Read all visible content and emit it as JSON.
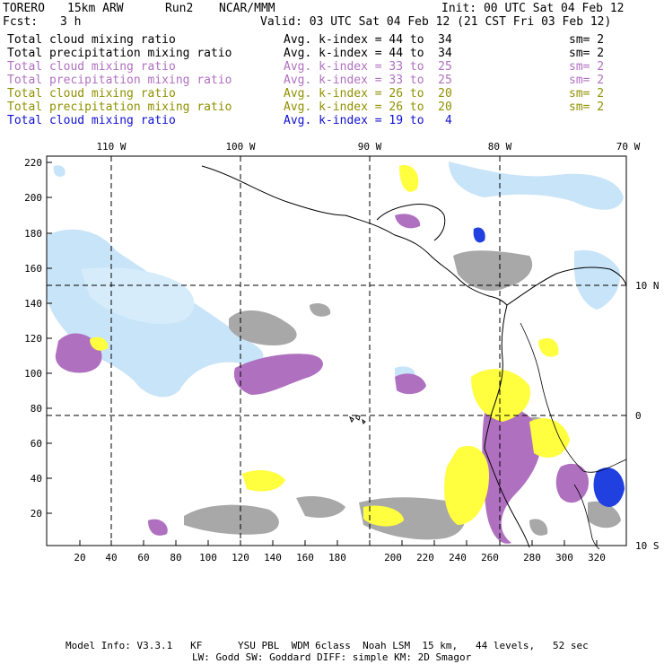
{
  "header": {
    "model": "TORERO",
    "resolution": "15km ARW",
    "run": "Run2",
    "org": "NCAR/MMM",
    "init": "Init: 00 UTC Sat 04 Feb 12",
    "fcst_label": "Fcst:",
    "fcst_value": "3 h",
    "valid": "Valid: 03 UTC Sat 04 Feb 12 (21 CST Fri 03 Feb 12)"
  },
  "legend": [
    {
      "field": "Total cloud mixing ratio",
      "kindex": "Avg. k-index = 44 to  34",
      "sm": "sm= 2",
      "color": "#000000"
    },
    {
      "field": "Total precipitation mixing ratio",
      "kindex": "Avg. k-index = 44 to  34",
      "sm": "sm= 2",
      "color": "#000000"
    },
    {
      "field": "Total cloud mixing ratio",
      "kindex": "Avg. k-index = 33 to  25",
      "sm": "sm= 2",
      "color": "#b070c0"
    },
    {
      "field": "Total precipitation mixing ratio",
      "kindex": "Avg. k-index = 33 to  25",
      "sm": "sm= 2",
      "color": "#b070c0"
    },
    {
      "field": "Total cloud mixing ratio",
      "kindex": "Avg. k-index = 26 to  20",
      "sm": "sm= 2",
      "color": "#909000"
    },
    {
      "field": "Total precipitation mixing ratio",
      "kindex": "Avg. k-index = 26 to  20",
      "sm": "sm= 2",
      "color": "#909000"
    },
    {
      "field": "Total cloud mixing ratio",
      "kindex": "Avg. k-index = 19 to   4",
      "sm": "",
      "color": "#1010d0"
    }
  ],
  "map": {
    "lon_labels": [
      "110 W",
      "100 W",
      "90 W",
      "80 W",
      "70 W"
    ],
    "lat_labels": [
      "10 N",
      "0",
      "10 S"
    ],
    "y_ticks": [
      "220",
      "200",
      "180",
      "160",
      "140",
      "120",
      "100",
      "80",
      "60",
      "40",
      "20"
    ],
    "x_ticks": [
      "20",
      "40",
      "60",
      "80",
      "100",
      "120",
      "140",
      "160",
      "180",
      "200",
      "220",
      "240",
      "260",
      "280",
      "300",
      "320"
    ]
  },
  "footer": {
    "line1": "Model Info: V3.3.1   KF      YSU PBL  WDM 6class  Noah LSM  15 km,   44 levels,   52 sec",
    "line2": "LW: Godd SW: Goddard DIFF: simple KM: 2D Smagor"
  },
  "colors": {
    "gray": "#a8a8a8",
    "purple": "#b070c0",
    "yellow": "#ffff40",
    "lightblue": "#c8e4f8",
    "blue": "#2040e0"
  }
}
